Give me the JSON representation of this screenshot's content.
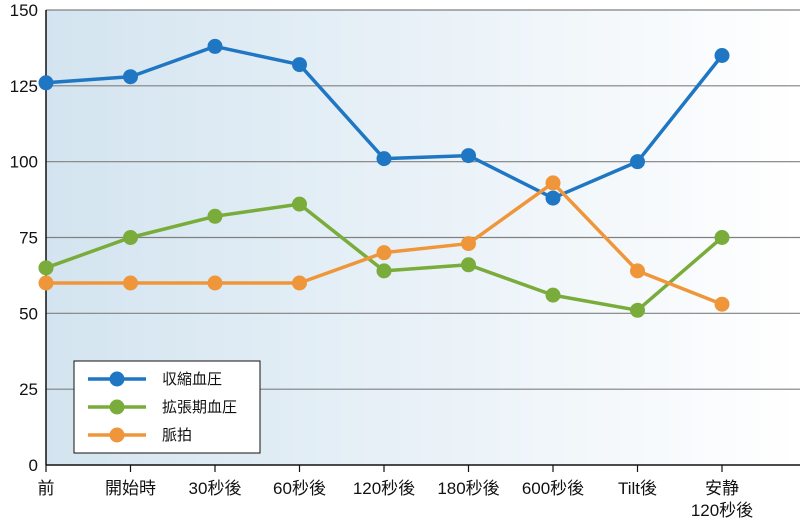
{
  "chart_data": {
    "type": "line",
    "title": "",
    "xlabel": "",
    "ylabel": "",
    "ylim": [
      0,
      150
    ],
    "yticks": [
      0,
      25,
      50,
      75,
      100,
      125,
      150
    ],
    "grid": "horizontal",
    "legend_position": "bottom-left",
    "categories": [
      [
        "前"
      ],
      [
        "開始時"
      ],
      [
        "30秒後"
      ],
      [
        "60秒後"
      ],
      [
        "120秒後"
      ],
      [
        "180秒後"
      ],
      [
        "600秒後"
      ],
      [
        "Tilt後"
      ],
      [
        "安静",
        "120秒後"
      ]
    ],
    "series": [
      {
        "name": "収縮血圧",
        "color": "#1f77c4",
        "values": [
          126,
          128,
          138,
          132,
          101,
          102,
          88,
          100,
          135
        ]
      },
      {
        "name": "拡張期血圧",
        "color": "#79ac3a",
        "values": [
          65,
          75,
          82,
          86,
          64,
          66,
          56,
          51,
          75
        ]
      },
      {
        "name": "脈拍",
        "color": "#f0963a",
        "values": [
          60,
          60,
          60,
          60,
          70,
          73,
          93,
          64,
          53
        ]
      }
    ],
    "background_gradient": [
      "#d3e4f0",
      "#ffffff"
    ],
    "grid_color": "#808080"
  }
}
